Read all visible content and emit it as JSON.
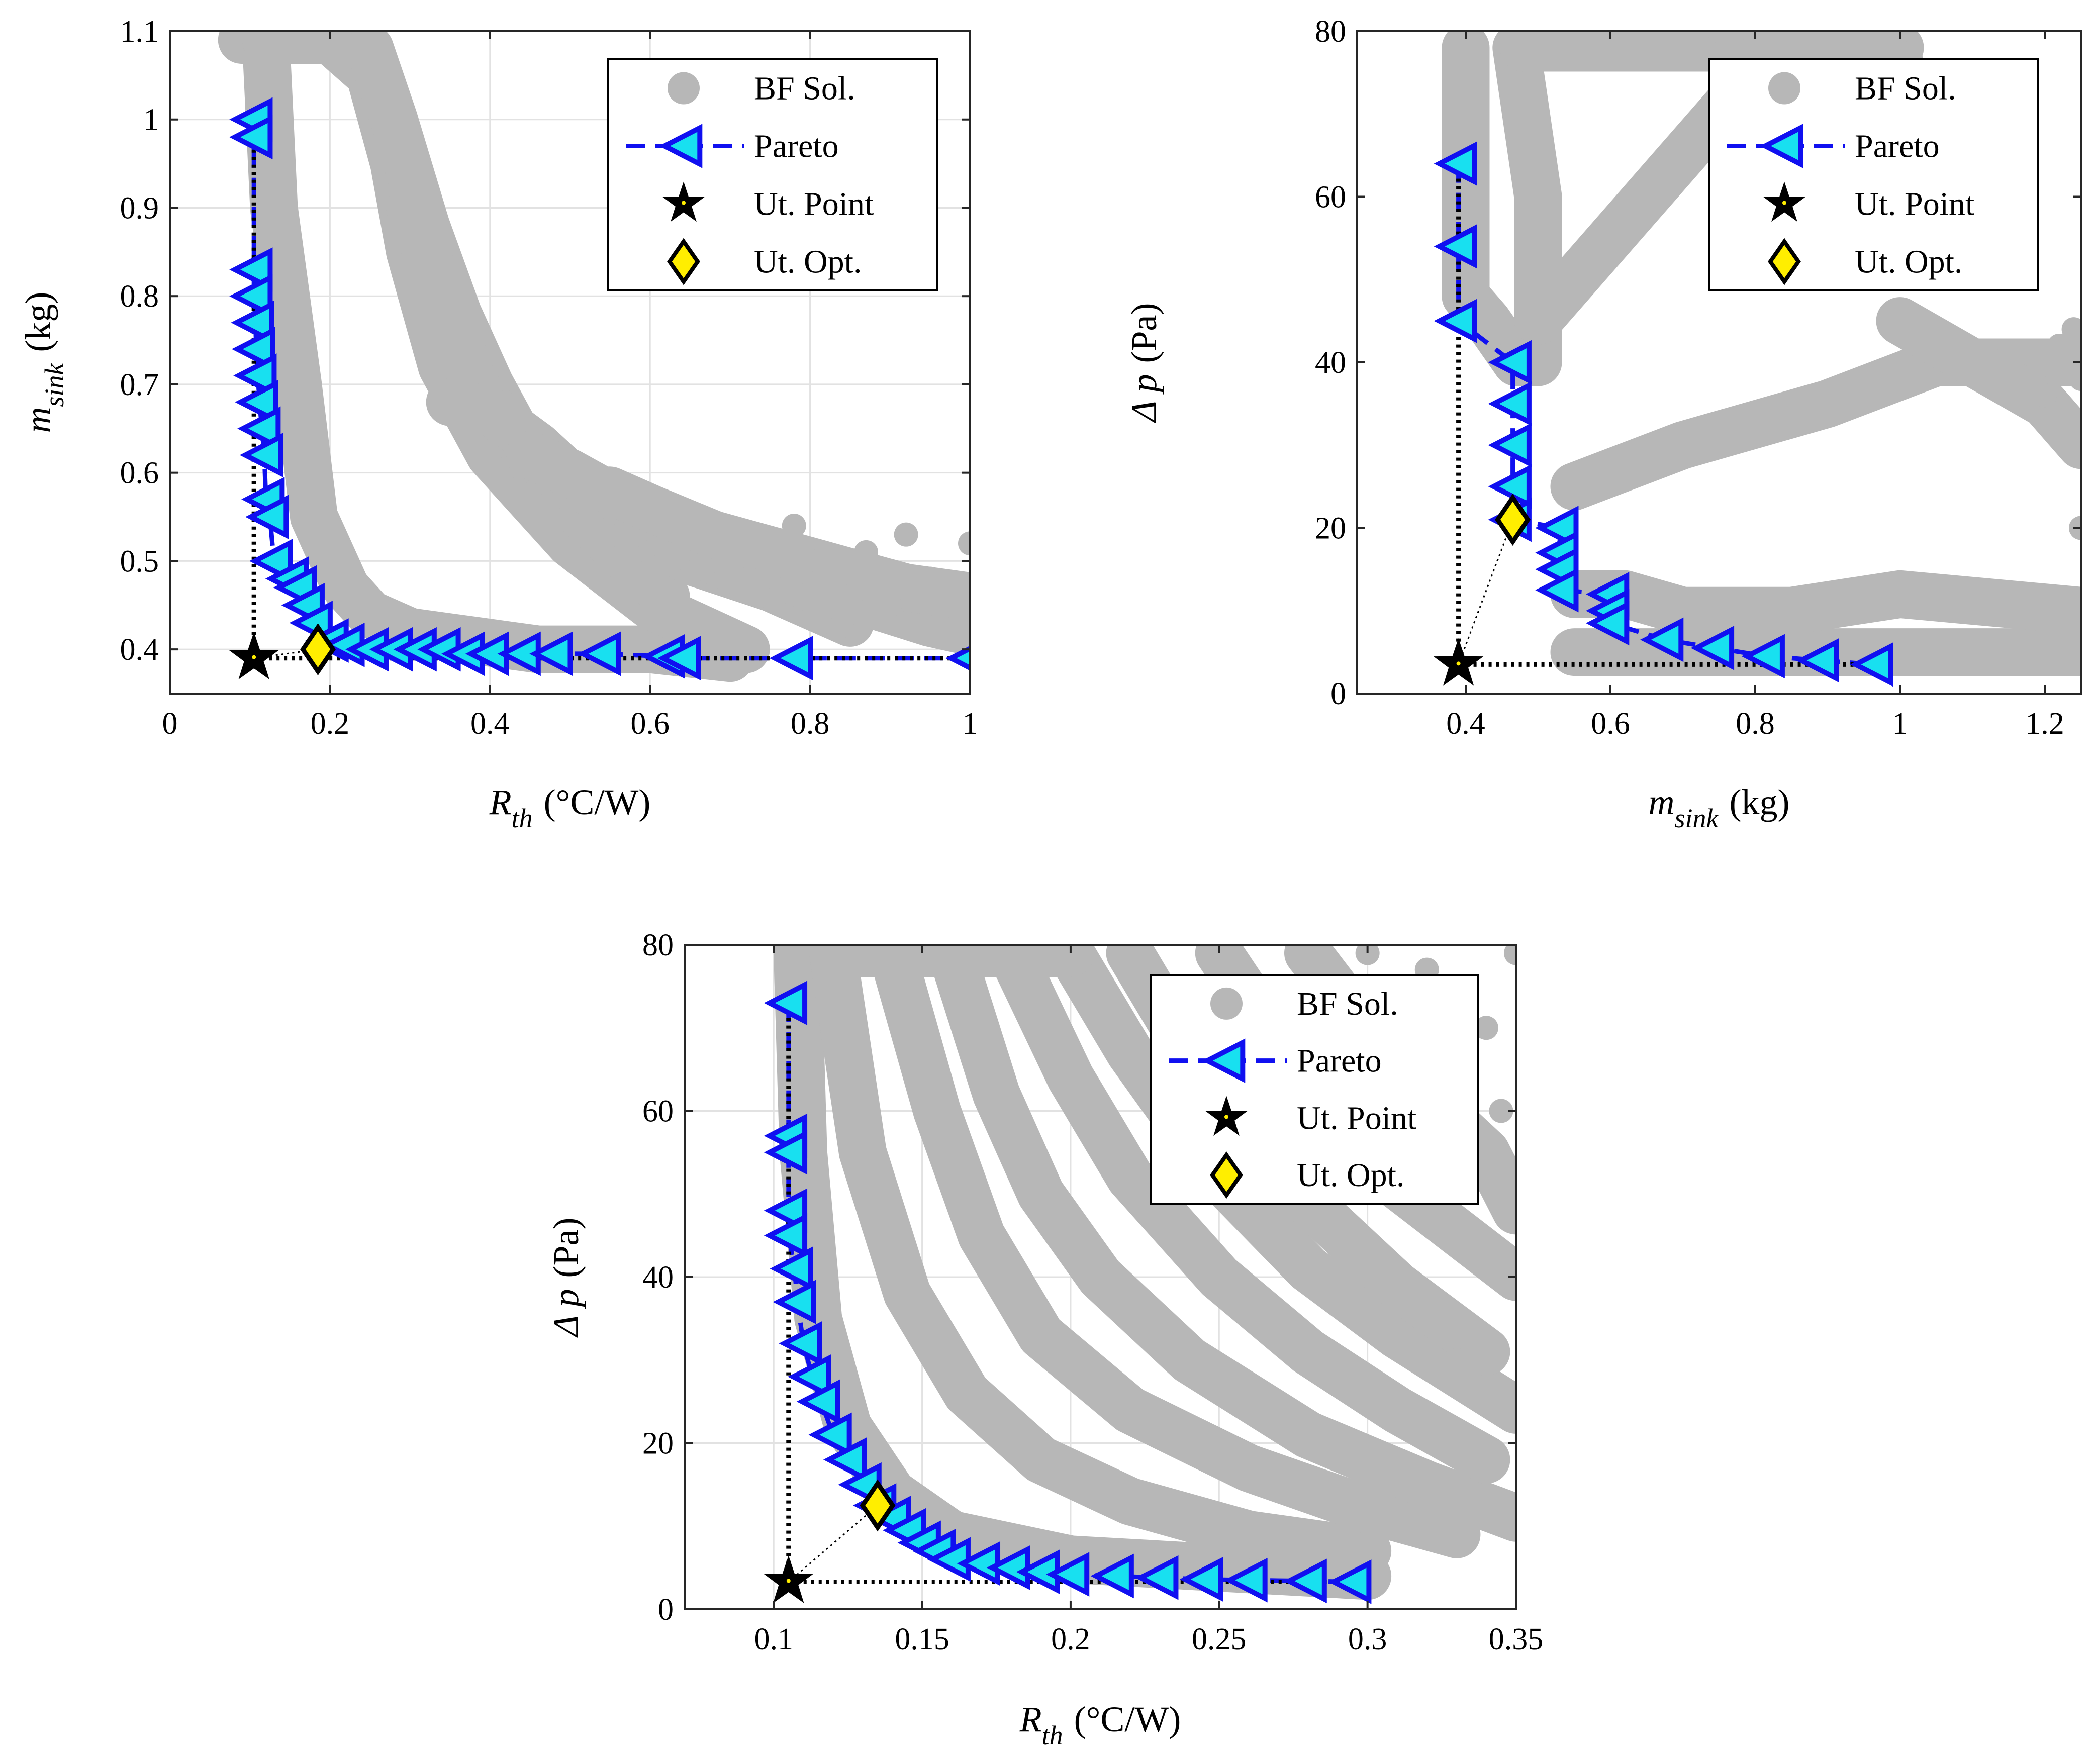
{
  "chart_data": [
    {
      "type": "scatter",
      "xlabel_main": "R",
      "xlabel_sub": "th",
      "xlabel_unit": "(°C/W)",
      "ylabel_main": "m",
      "ylabel_sub": "sink",
      "ylabel_unit": "(kg)",
      "xlim": [
        0,
        1
      ],
      "ylim": [
        0.35,
        1.1
      ],
      "xticks": [
        0,
        0.2,
        0.4,
        0.6,
        0.8,
        1
      ],
      "xtick_labels": [
        "0",
        "0.2",
        "0.4",
        "0.6",
        "0.8",
        "1"
      ],
      "yticks": [
        0.4,
        0.5,
        0.6,
        0.7,
        0.8,
        0.9,
        1,
        1.1
      ],
      "ytick_labels": [
        "0.4",
        "0.5",
        "0.6",
        "0.7",
        "0.8",
        "0.9",
        "1",
        "1.1"
      ],
      "grid": true,
      "legend_position": "top-right",
      "legend": [
        "BF Sol.",
        "Pareto",
        "Ut. Point",
        "Ut. Opt."
      ],
      "bf_bands": [
        {
          "x": [
            0.09,
            0.12,
            0.13,
            0.16,
            0.18,
            0.22,
            0.25,
            0.3,
            0.38,
            0.46,
            0.6,
            0.7
          ],
          "y": [
            1.09,
            1.09,
            0.9,
            0.7,
            0.55,
            0.47,
            0.44,
            0.42,
            0.41,
            0.4,
            0.4,
            0.39
          ]
        },
        {
          "x": [
            0.12,
            0.15,
            0.2,
            0.25,
            0.28,
            0.3,
            0.34,
            0.4,
            0.5,
            0.6,
            0.72
          ],
          "y": [
            1.09,
            1.09,
            1.09,
            1.05,
            0.95,
            0.85,
            0.72,
            0.62,
            0.52,
            0.45,
            0.4
          ]
        },
        {
          "x": [
            0.25,
            0.28,
            0.32,
            0.36,
            0.4,
            0.46,
            0.55,
            0.62
          ],
          "y": [
            1.08,
            1.0,
            0.88,
            0.78,
            0.7,
            0.6,
            0.52,
            0.46
          ]
        },
        {
          "x": [
            0.3,
            0.34,
            0.38,
            0.45,
            0.55,
            0.65,
            0.75,
            0.85
          ],
          "y": [
            0.9,
            0.8,
            0.7,
            0.62,
            0.55,
            0.5,
            0.47,
            0.43
          ]
        },
        {
          "x": [
            0.35,
            0.4,
            0.46,
            0.52,
            0.6,
            0.68,
            0.76,
            0.84
          ],
          "y": [
            0.68,
            0.67,
            0.63,
            0.58,
            0.54,
            0.5,
            0.47,
            0.44
          ]
        },
        {
          "x": [
            0.45,
            0.5,
            0.58,
            0.65,
            0.72,
            0.8,
            0.88,
            0.95,
            1.0
          ],
          "y": [
            0.62,
            0.6,
            0.56,
            0.53,
            0.5,
            0.47,
            0.45,
            0.43,
            0.42
          ]
        },
        {
          "x": [
            0.55,
            0.6,
            0.68,
            0.76,
            0.84,
            0.92,
            1.0
          ],
          "y": [
            0.58,
            0.56,
            0.53,
            0.51,
            0.49,
            0.47,
            0.46
          ]
        }
      ],
      "bf_scatter": [
        {
          "x": 1.0,
          "y": 0.52
        },
        {
          "x": 0.95,
          "y": 0.48
        },
        {
          "x": 0.92,
          "y": 0.53
        },
        {
          "x": 0.87,
          "y": 0.51
        },
        {
          "x": 0.81,
          "y": 0.5
        },
        {
          "x": 0.78,
          "y": 0.54
        },
        {
          "x": 0.85,
          "y": 0.46
        },
        {
          "x": 0.9,
          "y": 0.45
        },
        {
          "x": 0.74,
          "y": 0.48
        },
        {
          "x": 0.69,
          "y": 0.42
        }
      ],
      "pareto": {
        "x": [
          0.105,
          0.105,
          0.105,
          0.105,
          0.107,
          0.108,
          0.11,
          0.112,
          0.115,
          0.118,
          0.12,
          0.125,
          0.13,
          0.15,
          0.16,
          0.17,
          0.18,
          0.2,
          0.22,
          0.25,
          0.28,
          0.31,
          0.34,
          0.37,
          0.4,
          0.44,
          0.48,
          0.54,
          0.62,
          0.64,
          0.78,
          1.0
        ],
        "y": [
          1.0,
          0.98,
          0.83,
          0.8,
          0.77,
          0.74,
          0.71,
          0.68,
          0.65,
          0.62,
          0.57,
          0.55,
          0.5,
          0.48,
          0.47,
          0.45,
          0.43,
          0.41,
          0.405,
          0.4,
          0.4,
          0.4,
          0.4,
          0.395,
          0.395,
          0.395,
          0.395,
          0.395,
          0.392,
          0.39,
          0.39,
          0.39
        ]
      },
      "utopia_point": {
        "x": 0.105,
        "y": 0.39
      },
      "utopia_opt": {
        "x": 0.185,
        "y": 0.4
      }
    },
    {
      "type": "scatter",
      "xlabel_main": "m",
      "xlabel_sub": "sink",
      "xlabel_unit": "(kg)",
      "ylabel_main": "Δ p",
      "ylabel_sub": "",
      "ylabel_unit": "(Pa)",
      "xlim": [
        0.25,
        1.25
      ],
      "ylim": [
        0,
        80
      ],
      "xticks": [
        0.4,
        0.6,
        0.8,
        1,
        1.2
      ],
      "xtick_labels": [
        "0.4",
        "0.6",
        "0.8",
        "1",
        "1.2"
      ],
      "yticks": [
        0,
        20,
        40,
        60,
        80
      ],
      "ytick_labels": [
        "0",
        "20",
        "40",
        "60",
        "80"
      ],
      "grid": false,
      "legend_position": "top-right",
      "legend": [
        "BF Sol.",
        "Pareto",
        "Ut. Point",
        "Ut. Opt."
      ],
      "bf_bands": [
        {
          "x": [
            0.4,
            0.4,
            0.43,
            0.47
          ],
          "y": [
            78,
            48,
            45,
            40
          ]
        },
        {
          "x": [
            0.47,
            0.5,
            0.5,
            0.47
          ],
          "y": [
            40,
            40,
            60,
            78
          ]
        },
        {
          "x": [
            0.55,
            0.7,
            0.85,
            1.0,
            1.15,
            1.25
          ],
          "y": [
            5,
            5,
            5,
            5,
            5,
            5
          ]
        },
        {
          "x": [
            0.55,
            0.7,
            0.9,
            1.05,
            1.2,
            1.25
          ],
          "y": [
            25,
            30,
            35,
            40,
            40,
            40
          ]
        },
        {
          "x": [
            0.5,
            0.6,
            0.7,
            0.8,
            0.9,
            1.0
          ],
          "y": [
            45,
            55,
            65,
            75,
            78,
            78
          ]
        },
        {
          "x": [
            0.48,
            0.6,
            0.75,
            0.9,
            1.0,
            1.05
          ],
          "y": [
            78,
            78,
            78,
            78,
            76,
            60
          ]
        },
        {
          "x": [
            1.0,
            1.1,
            1.2,
            1.25
          ],
          "y": [
            45,
            40,
            35,
            30
          ]
        },
        {
          "x": [
            0.55,
            0.62,
            0.7,
            0.85,
            1.0,
            1.25
          ],
          "y": [
            12,
            12,
            10,
            10,
            12,
            10
          ]
        }
      ],
      "bf_scatter": [
        {
          "x": 1.24,
          "y": 44
        },
        {
          "x": 1.22,
          "y": 42
        },
        {
          "x": 1.25,
          "y": 38
        },
        {
          "x": 1.2,
          "y": 36
        },
        {
          "x": 0.86,
          "y": 72
        },
        {
          "x": 0.8,
          "y": 79
        },
        {
          "x": 0.75,
          "y": 80
        },
        {
          "x": 1.25,
          "y": 20
        }
      ],
      "pareto": {
        "x": [
          0.39,
          0.39,
          0.39,
          0.465,
          0.465,
          0.465,
          0.465,
          0.465,
          0.53,
          0.53,
          0.53,
          0.53,
          0.6,
          0.6,
          0.6,
          0.675,
          0.745,
          0.815,
          0.89,
          0.965
        ],
        "y": [
          64,
          54,
          45,
          40,
          35,
          30,
          25,
          21,
          20,
          17,
          15,
          12.5,
          12,
          10,
          8.5,
          6.5,
          5.5,
          4.5,
          4,
          3.5
        ]
      },
      "utopia_point": {
        "x": 0.39,
        "y": 3.5
      },
      "utopia_opt": {
        "x": 0.465,
        "y": 21
      }
    },
    {
      "type": "scatter",
      "xlabel_main": "R",
      "xlabel_sub": "th",
      "xlabel_unit": "(°C/W)",
      "ylabel_main": "Δ p",
      "ylabel_sub": "",
      "ylabel_unit": "(Pa)",
      "xlim": [
        0.07,
        0.35
      ],
      "ylim": [
        0,
        80
      ],
      "xticks": [
        0.1,
        0.15,
        0.2,
        0.25,
        0.3,
        0.35
      ],
      "xtick_labels": [
        "0.1",
        "0.15",
        "0.2",
        "0.25",
        "0.3",
        "0.35"
      ],
      "yticks": [
        0,
        20,
        40,
        60,
        80
      ],
      "ytick_labels": [
        "0",
        "20",
        "40",
        "60",
        "80"
      ],
      "grid": true,
      "legend_position": "top-right",
      "legend": [
        "BF Sol.",
        "Pareto",
        "Ut. Point",
        "Ut. Opt."
      ],
      "bf_bands": [
        {
          "x": [
            0.108,
            0.11,
            0.115,
            0.125,
            0.14,
            0.16,
            0.2,
            0.25,
            0.3
          ],
          "y": [
            79,
            55,
            35,
            22,
            14,
            9,
            6,
            5,
            4
          ]
        },
        {
          "x": [
            0.12,
            0.13,
            0.145,
            0.165,
            0.19,
            0.22,
            0.26,
            0.3
          ],
          "y": [
            79,
            55,
            38,
            26,
            18,
            13,
            9,
            7
          ]
        },
        {
          "x": [
            0.14,
            0.155,
            0.17,
            0.19,
            0.22,
            0.26,
            0.3,
            0.33
          ],
          "y": [
            79,
            60,
            45,
            33,
            24,
            17,
            12,
            9
          ]
        },
        {
          "x": [
            0.16,
            0.175,
            0.19,
            0.21,
            0.24,
            0.28,
            0.32,
            0.35
          ],
          "y": [
            79,
            62,
            50,
            40,
            30,
            21,
            15,
            11
          ]
        },
        {
          "x": [
            0.18,
            0.2,
            0.22,
            0.25,
            0.28,
            0.31,
            0.34
          ],
          "y": [
            79,
            64,
            52,
            40,
            31,
            24,
            18
          ]
        },
        {
          "x": [
            0.2,
            0.22,
            0.25,
            0.28,
            0.31,
            0.35
          ],
          "y": [
            79,
            67,
            52,
            41,
            33,
            24
          ]
        },
        {
          "x": [
            0.22,
            0.25,
            0.28,
            0.31,
            0.34
          ],
          "y": [
            79,
            61,
            49,
            39,
            31
          ]
        },
        {
          "x": [
            0.25,
            0.28,
            0.31,
            0.35
          ],
          "y": [
            79,
            63,
            51,
            40
          ]
        },
        {
          "x": [
            0.28,
            0.31,
            0.34,
            0.35
          ],
          "y": [
            79,
            65,
            55,
            48
          ]
        },
        {
          "x": [
            0.12,
            0.14,
            0.16,
            0.2
          ],
          "y": [
            79,
            79,
            79,
            79
          ]
        }
      ],
      "bf_scatter": [
        {
          "x": 0.35,
          "y": 79
        },
        {
          "x": 0.3,
          "y": 79
        },
        {
          "x": 0.28,
          "y": 78
        },
        {
          "x": 0.32,
          "y": 77
        },
        {
          "x": 0.34,
          "y": 70
        },
        {
          "x": 0.345,
          "y": 60
        },
        {
          "x": 0.33,
          "y": 30
        }
      ],
      "pareto": {
        "x": [
          0.105,
          0.105,
          0.105,
          0.105,
          0.105,
          0.107,
          0.108,
          0.11,
          0.113,
          0.116,
          0.12,
          0.125,
          0.13,
          0.135,
          0.14,
          0.145,
          0.15,
          0.155,
          0.16,
          0.17,
          0.18,
          0.19,
          0.2,
          0.215,
          0.23,
          0.245,
          0.26,
          0.28,
          0.295
        ],
        "y": [
          73,
          57,
          55,
          48,
          45,
          41,
          37,
          32,
          28,
          25,
          21,
          18,
          15,
          12.5,
          11,
          9.5,
          8,
          7,
          6,
          5.5,
          5,
          4.5,
          4.2,
          4,
          3.8,
          3.6,
          3.5,
          3.4,
          3.3
        ]
      },
      "utopia_point": {
        "x": 0.105,
        "y": 3.3
      },
      "utopia_opt": {
        "x": 0.135,
        "y": 12.5
      }
    }
  ]
}
